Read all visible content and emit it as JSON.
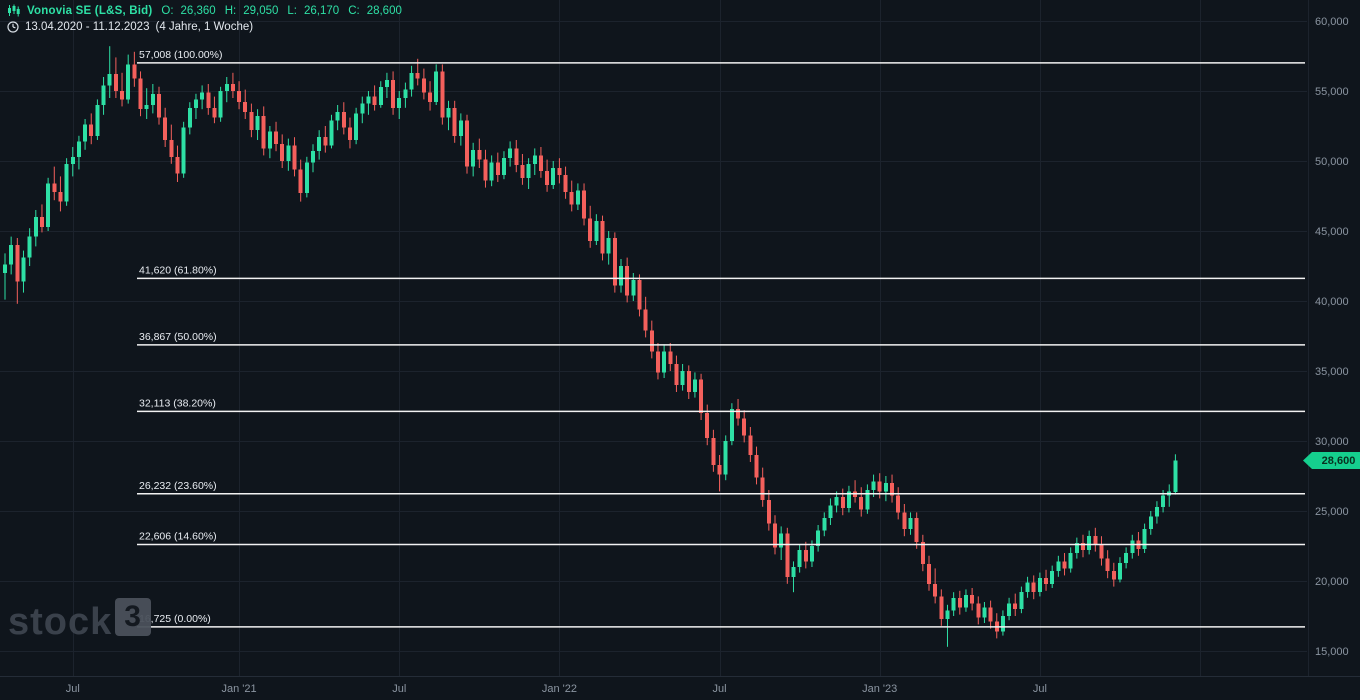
{
  "header": {
    "symbol": "Vonovia SE (L&S, Bid)",
    "ohlc": [
      {
        "label": "O:",
        "value": "26,360"
      },
      {
        "label": "H:",
        "value": "29,050"
      },
      {
        "label": "L:",
        "value": "26,170"
      },
      {
        "label": "C:",
        "value": "28,600"
      }
    ],
    "date_range": "13.04.2020 - 11.12.2023",
    "interval": "(4 Jahre, 1 Woche)"
  },
  "watermark": {
    "text": "stock",
    "sup": "3"
  },
  "price_tag": {
    "label": "28,600"
  },
  "colors": {
    "background": "#0f151c",
    "up": "#2ee0a5",
    "down": "#f4605c",
    "grid": "#1c232d",
    "separator": "#242c37",
    "fib_line": "#f2f2f2",
    "fib_text": "#e9edf2",
    "axis_text": "#8b95a1",
    "tag_bg": "#15cf8e",
    "header_green": "#2ee0a5"
  },
  "chart_data": {
    "type": "candlestick",
    "title": "Vonovia SE (L&S, Bid)",
    "timeframe": "1 Woche",
    "date_range": "13.04.2020 - 11.12.2023",
    "duration": "4 Jahre",
    "grid": true,
    "legend": false,
    "ylim": [
      13.3,
      61.5
    ],
    "unit": "EUR",
    "last_candle": {
      "open": 26.36,
      "high": 29.05,
      "low": 26.17,
      "close": 28.6
    },
    "y_axis": {
      "ticks": [
        {
          "value": 60,
          "label": "60,000"
        },
        {
          "value": 55,
          "label": "55,000"
        },
        {
          "value": 50,
          "label": "50,000"
        },
        {
          "value": 45,
          "label": "45,000"
        },
        {
          "value": 40,
          "label": "40,000"
        },
        {
          "value": 35,
          "label": "35,000"
        },
        {
          "value": 30,
          "label": "30,000"
        },
        {
          "value": 25,
          "label": "25,000"
        },
        {
          "value": 20,
          "label": "20,000"
        },
        {
          "value": 15,
          "label": "15,000"
        }
      ]
    },
    "x_axis": {
      "ticks": [
        {
          "week": 11,
          "label": "Jul"
        },
        {
          "week": 38,
          "label": "Jan '21"
        },
        {
          "week": 64,
          "label": "Jul"
        },
        {
          "week": 90,
          "label": "Jan '22"
        },
        {
          "week": 116,
          "label": "Jul"
        },
        {
          "week": 142,
          "label": "Jan '23"
        },
        {
          "week": 168,
          "label": "Jul"
        },
        {
          "week": 194,
          "label": ""
        }
      ]
    },
    "fibonacci_levels": [
      {
        "price": 57.008,
        "label": "57,008 (100.00%)"
      },
      {
        "price": 41.62,
        "label": "41,620 (61.80%)"
      },
      {
        "price": 36.867,
        "label": "36,867 (50.00%)"
      },
      {
        "price": 32.113,
        "label": "32,113 (38.20%)"
      },
      {
        "price": 26.232,
        "label": "26,232 (23.60%)"
      },
      {
        "price": 22.606,
        "label": "22,606 (14.60%)"
      },
      {
        "price": 16.725,
        "label": "16,725 (0.00%)"
      }
    ],
    "candles_ohlc": [
      [
        42.0,
        43.4,
        40.1,
        42.6
      ],
      [
        42.6,
        44.6,
        41.9,
        44.0
      ],
      [
        44.0,
        44.5,
        39.8,
        41.4
      ],
      [
        41.4,
        43.6,
        40.6,
        43.1
      ],
      [
        43.1,
        45.2,
        42.5,
        44.6
      ],
      [
        44.6,
        46.5,
        43.9,
        46.0
      ],
      [
        46.0,
        46.9,
        44.9,
        45.3
      ],
      [
        45.3,
        48.8,
        45.0,
        48.4
      ],
      [
        48.4,
        49.6,
        47.2,
        47.8
      ],
      [
        47.8,
        48.9,
        46.4,
        47.1
      ],
      [
        47.1,
        50.2,
        46.8,
        49.8
      ],
      [
        49.8,
        51.0,
        48.9,
        50.3
      ],
      [
        50.3,
        51.8,
        49.4,
        51.4
      ],
      [
        51.4,
        53.0,
        50.8,
        52.6
      ],
      [
        52.6,
        53.4,
        51.2,
        51.8
      ],
      [
        51.8,
        54.4,
        51.5,
        54.0
      ],
      [
        54.0,
        56.0,
        53.3,
        55.4
      ],
      [
        55.4,
        58.2,
        54.5,
        56.2
      ],
      [
        56.2,
        57.4,
        54.5,
        55.0
      ],
      [
        55.0,
        56.3,
        53.9,
        54.4
      ],
      [
        54.4,
        57.6,
        54.1,
        56.9
      ],
      [
        56.9,
        57.8,
        55.3,
        55.9
      ],
      [
        55.9,
        56.4,
        53.2,
        53.7
      ],
      [
        53.7,
        55.2,
        53.0,
        54.0
      ],
      [
        54.0,
        55.5,
        53.4,
        54.8
      ],
      [
        54.8,
        55.3,
        52.6,
        53.1
      ],
      [
        53.1,
        53.8,
        51.0,
        51.5
      ],
      [
        51.5,
        52.6,
        49.8,
        50.3
      ],
      [
        50.3,
        51.1,
        48.5,
        49.1
      ],
      [
        49.1,
        52.8,
        48.8,
        52.4
      ],
      [
        52.4,
        54.2,
        51.9,
        53.8
      ],
      [
        53.8,
        54.8,
        53.0,
        54.4
      ],
      [
        54.4,
        55.4,
        53.7,
        54.9
      ],
      [
        54.9,
        55.5,
        53.3,
        53.8
      ],
      [
        53.8,
        54.6,
        52.7,
        53.1
      ],
      [
        53.1,
        55.3,
        52.8,
        55.0
      ],
      [
        55.0,
        56.0,
        54.2,
        55.5
      ],
      [
        55.5,
        56.3,
        54.5,
        55.0
      ],
      [
        55.0,
        55.7,
        53.7,
        54.2
      ],
      [
        54.2,
        55.1,
        53.0,
        53.5
      ],
      [
        53.5,
        54.1,
        51.7,
        52.2
      ],
      [
        52.2,
        53.7,
        51.5,
        53.2
      ],
      [
        53.2,
        53.9,
        50.4,
        50.9
      ],
      [
        50.9,
        52.5,
        50.2,
        52.1
      ],
      [
        52.1,
        52.8,
        50.7,
        51.2
      ],
      [
        51.2,
        51.9,
        49.5,
        50.0
      ],
      [
        50.0,
        51.6,
        49.3,
        51.1
      ],
      [
        51.1,
        51.7,
        48.9,
        49.4
      ],
      [
        49.4,
        50.1,
        47.1,
        47.7
      ],
      [
        47.7,
        50.3,
        47.4,
        49.9
      ],
      [
        49.9,
        51.2,
        49.2,
        50.7
      ],
      [
        50.7,
        52.2,
        50.1,
        51.7
      ],
      [
        51.7,
        52.5,
        50.6,
        51.1
      ],
      [
        51.1,
        53.3,
        50.9,
        52.9
      ],
      [
        52.9,
        54.0,
        52.2,
        53.5
      ],
      [
        53.5,
        54.2,
        51.9,
        52.4
      ],
      [
        52.4,
        53.1,
        50.9,
        51.5
      ],
      [
        51.5,
        53.8,
        51.2,
        53.4
      ],
      [
        53.4,
        54.6,
        52.7,
        54.1
      ],
      [
        54.1,
        55.0,
        53.3,
        54.6
      ],
      [
        54.6,
        55.4,
        53.6,
        54.0
      ],
      [
        54.0,
        55.7,
        53.8,
        55.3
      ],
      [
        55.3,
        56.3,
        54.5,
        55.8
      ],
      [
        55.8,
        56.4,
        53.3,
        53.8
      ],
      [
        53.8,
        55.0,
        53.0,
        54.5
      ],
      [
        54.5,
        55.6,
        53.8,
        55.1
      ],
      [
        55.1,
        56.8,
        54.6,
        56.3
      ],
      [
        56.3,
        57.3,
        55.4,
        55.9
      ],
      [
        55.9,
        56.6,
        54.4,
        54.9
      ],
      [
        54.9,
        55.7,
        53.6,
        54.2
      ],
      [
        54.2,
        56.9,
        54.0,
        56.4
      ],
      [
        56.4,
        56.9,
        52.6,
        53.1
      ],
      [
        53.1,
        54.3,
        52.2,
        53.8
      ],
      [
        53.8,
        54.3,
        51.3,
        51.8
      ],
      [
        51.8,
        53.4,
        51.1,
        52.9
      ],
      [
        52.9,
        53.3,
        49.1,
        49.6
      ],
      [
        49.6,
        51.3,
        48.9,
        50.8
      ],
      [
        50.8,
        51.6,
        49.5,
        50.1
      ],
      [
        50.1,
        50.8,
        48.1,
        48.6
      ],
      [
        48.6,
        50.4,
        48.2,
        49.9
      ],
      [
        49.9,
        50.6,
        48.5,
        49.0
      ],
      [
        49.0,
        50.7,
        48.7,
        50.2
      ],
      [
        50.2,
        51.4,
        49.6,
        50.9
      ],
      [
        50.9,
        51.5,
        49.2,
        49.7
      ],
      [
        49.7,
        50.5,
        48.3,
        48.8
      ],
      [
        48.8,
        50.2,
        48.0,
        49.8
      ],
      [
        49.8,
        50.9,
        49.0,
        50.4
      ],
      [
        50.4,
        51.0,
        48.8,
        49.3
      ],
      [
        49.3,
        50.1,
        47.8,
        48.3
      ],
      [
        48.3,
        50.0,
        48.0,
        49.5
      ],
      [
        49.5,
        50.2,
        48.4,
        49.0
      ],
      [
        49.0,
        49.6,
        47.3,
        47.8
      ],
      [
        47.8,
        48.6,
        46.4,
        46.9
      ],
      [
        46.9,
        48.4,
        46.5,
        47.9
      ],
      [
        47.9,
        48.4,
        45.4,
        45.9
      ],
      [
        45.9,
        46.8,
        43.8,
        44.3
      ],
      [
        44.3,
        46.2,
        44.0,
        45.7
      ],
      [
        45.7,
        46.1,
        42.9,
        43.4
      ],
      [
        43.4,
        45.0,
        42.6,
        44.5
      ],
      [
        44.5,
        44.9,
        40.6,
        41.1
      ],
      [
        41.1,
        43.0,
        40.6,
        42.5
      ],
      [
        42.5,
        43.1,
        39.9,
        40.4
      ],
      [
        40.4,
        42.0,
        40.0,
        41.5
      ],
      [
        41.5,
        41.9,
        38.9,
        39.4
      ],
      [
        39.4,
        40.3,
        37.4,
        37.9
      ],
      [
        37.9,
        38.6,
        35.9,
        36.4
      ],
      [
        36.4,
        37.0,
        34.4,
        34.9
      ],
      [
        34.9,
        36.9,
        34.5,
        36.4
      ],
      [
        36.4,
        37.0,
        35.0,
        35.5
      ],
      [
        35.5,
        36.1,
        33.5,
        34.0
      ],
      [
        34.0,
        35.5,
        33.6,
        35.0
      ],
      [
        35.0,
        35.4,
        33.0,
        33.5
      ],
      [
        33.5,
        34.9,
        33.1,
        34.4
      ],
      [
        34.4,
        34.8,
        31.5,
        32.0
      ],
      [
        32.0,
        32.6,
        29.7,
        30.2
      ],
      [
        30.2,
        30.8,
        27.8,
        28.3
      ],
      [
        28.3,
        29.0,
        26.4,
        27.6
      ],
      [
        27.6,
        30.4,
        27.2,
        30.0
      ],
      [
        30.0,
        32.7,
        29.7,
        32.3
      ],
      [
        32.3,
        33.0,
        31.1,
        31.6
      ],
      [
        31.6,
        32.2,
        29.9,
        30.4
      ],
      [
        30.4,
        31.0,
        28.5,
        29.0
      ],
      [
        29.0,
        29.6,
        26.9,
        27.4
      ],
      [
        27.4,
        28.1,
        25.3,
        25.8
      ],
      [
        25.8,
        26.5,
        23.6,
        24.1
      ],
      [
        24.1,
        24.7,
        21.9,
        22.4
      ],
      [
        22.4,
        23.9,
        21.5,
        23.4
      ],
      [
        23.4,
        23.8,
        19.8,
        20.3
      ],
      [
        20.3,
        21.4,
        19.2,
        21.0
      ],
      [
        21.0,
        22.6,
        20.6,
        22.2
      ],
      [
        22.2,
        22.8,
        20.9,
        21.4
      ],
      [
        21.4,
        22.9,
        21.0,
        22.5
      ],
      [
        22.5,
        24.0,
        22.1,
        23.6
      ],
      [
        23.6,
        24.9,
        23.2,
        24.5
      ],
      [
        24.5,
        25.9,
        24.0,
        25.4
      ],
      [
        25.4,
        26.4,
        24.9,
        26.0
      ],
      [
        26.0,
        26.6,
        24.7,
        25.2
      ],
      [
        25.2,
        26.8,
        24.9,
        26.4
      ],
      [
        26.4,
        27.2,
        25.6,
        26.0
      ],
      [
        26.0,
        26.7,
        24.6,
        25.1
      ],
      [
        25.1,
        26.9,
        24.8,
        26.5
      ],
      [
        26.5,
        27.6,
        26.0,
        27.1
      ],
      [
        27.1,
        27.7,
        25.9,
        26.4
      ],
      [
        26.4,
        27.5,
        25.7,
        27.0
      ],
      [
        27.0,
        27.6,
        25.6,
        26.1
      ],
      [
        26.1,
        26.7,
        24.4,
        24.9
      ],
      [
        24.9,
        25.5,
        23.2,
        23.7
      ],
      [
        23.7,
        24.9,
        23.3,
        24.5
      ],
      [
        24.5,
        24.9,
        22.3,
        22.8
      ],
      [
        22.8,
        23.3,
        20.7,
        21.2
      ],
      [
        21.2,
        21.8,
        19.3,
        19.8
      ],
      [
        19.8,
        20.9,
        18.4,
        18.9
      ],
      [
        18.9,
        19.4,
        16.8,
        17.3
      ],
      [
        17.3,
        18.3,
        15.3,
        17.9
      ],
      [
        17.9,
        19.2,
        17.5,
        18.8
      ],
      [
        18.8,
        19.3,
        17.6,
        18.1
      ],
      [
        18.1,
        19.4,
        17.8,
        19.0
      ],
      [
        19.0,
        19.5,
        17.9,
        18.4
      ],
      [
        18.4,
        18.9,
        16.9,
        17.4
      ],
      [
        17.4,
        18.5,
        17.0,
        18.1
      ],
      [
        18.1,
        18.6,
        16.6,
        17.1
      ],
      [
        17.1,
        17.7,
        15.9,
        16.4
      ],
      [
        16.4,
        17.9,
        16.1,
        17.5
      ],
      [
        17.5,
        18.8,
        17.2,
        18.4
      ],
      [
        18.4,
        19.1,
        17.5,
        18.0
      ],
      [
        18.0,
        19.6,
        17.7,
        19.2
      ],
      [
        19.2,
        20.3,
        18.8,
        19.9
      ],
      [
        19.9,
        20.4,
        18.7,
        19.2
      ],
      [
        19.2,
        20.6,
        18.9,
        20.2
      ],
      [
        20.2,
        20.8,
        19.3,
        19.8
      ],
      [
        19.8,
        21.1,
        19.5,
        20.7
      ],
      [
        20.7,
        21.8,
        20.3,
        21.4
      ],
      [
        21.4,
        22.0,
        20.4,
        20.9
      ],
      [
        20.9,
        22.4,
        20.6,
        22.0
      ],
      [
        22.0,
        23.1,
        21.6,
        22.7
      ],
      [
        22.7,
        23.3,
        21.7,
        22.2
      ],
      [
        22.2,
        23.6,
        21.9,
        23.2
      ],
      [
        23.2,
        23.8,
        22.1,
        22.6
      ],
      [
        22.6,
        23.2,
        21.1,
        21.6
      ],
      [
        21.6,
        22.2,
        20.2,
        20.7
      ],
      [
        20.7,
        21.3,
        19.6,
        20.1
      ],
      [
        20.1,
        21.7,
        19.9,
        21.3
      ],
      [
        21.3,
        22.4,
        20.9,
        22.0
      ],
      [
        22.0,
        23.3,
        21.6,
        22.9
      ],
      [
        22.9,
        23.5,
        21.8,
        22.3
      ],
      [
        22.3,
        24.1,
        22.0,
        23.7
      ],
      [
        23.7,
        25.0,
        23.3,
        24.6
      ],
      [
        24.6,
        25.7,
        24.1,
        25.3
      ],
      [
        25.3,
        26.5,
        24.9,
        26.1
      ],
      [
        26.1,
        26.9,
        25.3,
        26.4
      ],
      [
        26.36,
        29.05,
        26.17,
        28.6
      ]
    ]
  }
}
